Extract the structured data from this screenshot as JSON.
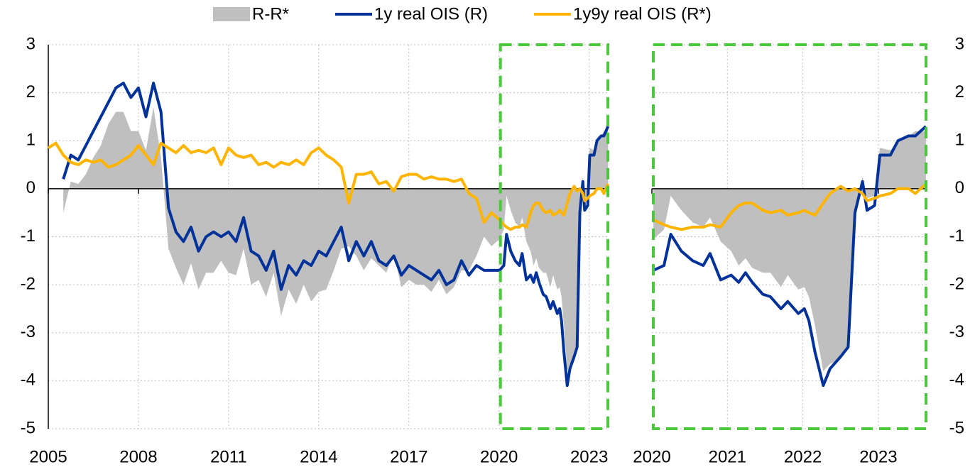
{
  "chart_data": [
    {
      "type": "line",
      "legend": "top",
      "grid": true,
      "yaxis": "left",
      "xlim": [
        2005,
        2023.67
      ],
      "xticks": [
        2005,
        2008,
        2011,
        2014,
        2017,
        2020,
        2023
      ],
      "ylim": [
        -5,
        3
      ],
      "yticks": [
        -5,
        -4,
        -3,
        -2,
        -1,
        0,
        1,
        2,
        3
      ],
      "x": [
        2005.0,
        2005.25,
        2005.5,
        2005.75,
        2006.0,
        2006.25,
        2006.5,
        2006.75,
        2007.0,
        2007.25,
        2007.5,
        2007.75,
        2008.0,
        2008.25,
        2008.5,
        2008.75,
        2009.0,
        2009.25,
        2009.5,
        2009.75,
        2010.0,
        2010.25,
        2010.5,
        2010.75,
        2011.0,
        2011.25,
        2011.5,
        2011.75,
        2012.0,
        2012.25,
        2012.5,
        2012.75,
        2013.0,
        2013.25,
        2013.5,
        2013.75,
        2014.0,
        2014.25,
        2014.5,
        2014.75,
        2015.0,
        2015.25,
        2015.5,
        2015.75,
        2016.0,
        2016.25,
        2016.5,
        2016.75,
        2017.0,
        2017.25,
        2017.5,
        2017.75,
        2018.0,
        2018.25,
        2018.5,
        2018.75,
        2019.0,
        2019.25,
        2019.5,
        2019.75,
        2020.02,
        2020.16,
        2020.25,
        2020.39,
        2020.54,
        2020.68,
        2020.77,
        2020.91,
        2021.05,
        2021.15,
        2021.24,
        2021.33,
        2021.47,
        2021.57,
        2021.71,
        2021.8,
        2021.94,
        2022.02,
        2022.08,
        2022.16,
        2022.27,
        2022.36,
        2022.5,
        2022.6,
        2022.69,
        2022.79,
        2022.85,
        2022.95,
        2023.02,
        2023.16,
        2023.26,
        2023.4,
        2023.49,
        2023.63
      ],
      "series": [
        {
          "name": "R-R*",
          "kind": "area",
          "color": "#bfbfbf",
          "values": [
            null,
            null,
            -0.5,
            0.15,
            0.1,
            0.3,
            0.65,
            0.9,
            1.35,
            1.6,
            1.6,
            1.2,
            1.2,
            0.8,
            1.7,
            0.65,
            -1.25,
            -1.65,
            -2.0,
            -1.55,
            -2.1,
            -1.75,
            -1.75,
            -1.5,
            -1.75,
            -1.8,
            -1.25,
            -2.0,
            -1.9,
            -2.25,
            -1.75,
            -2.65,
            -2.1,
            -2.4,
            -2.0,
            -2.35,
            -2.15,
            -2.1,
            -1.7,
            -1.25,
            -1.2,
            -1.4,
            -1.7,
            -1.45,
            -1.6,
            -1.75,
            -1.35,
            -2.05,
            -1.9,
            -2.0,
            -2.0,
            -2.15,
            -1.9,
            -2.2,
            -2.05,
            -1.7,
            -1.7,
            -1.4,
            -1.0,
            -1.2,
            -1.05,
            -0.85,
            -0.15,
            -0.45,
            -0.7,
            -0.8,
            -0.6,
            -1.1,
            -1.3,
            -1.6,
            -1.45,
            -1.65,
            -1.75,
            -1.75,
            -2.05,
            -1.8,
            -2.1,
            -2.05,
            -2.25,
            -2.85,
            -3.8,
            -3.65,
            -3.55,
            -3.25,
            -0.5,
            0.25,
            -0.2,
            -0.15,
            0.85,
            0.8,
            1.0,
            1.1,
            1.2,
            1.2
          ]
        },
        {
          "name": "1y real OIS (R)",
          "kind": "line",
          "color": "#003299",
          "values": [
            null,
            null,
            0.2,
            0.7,
            0.6,
            0.9,
            1.2,
            1.5,
            1.8,
            2.1,
            2.2,
            1.9,
            2.1,
            1.5,
            2.2,
            1.6,
            -0.4,
            -0.9,
            -1.1,
            -0.8,
            -1.3,
            -1.0,
            -0.9,
            -1.0,
            -0.9,
            -1.1,
            -0.6,
            -1.3,
            -1.4,
            -1.7,
            -1.3,
            -2.1,
            -1.6,
            -1.8,
            -1.5,
            -1.6,
            -1.3,
            -1.4,
            -1.1,
            -0.8,
            -1.5,
            -1.1,
            -1.4,
            -1.1,
            -1.5,
            -1.6,
            -1.4,
            -1.8,
            -1.6,
            -1.7,
            -1.8,
            -1.9,
            -1.7,
            -2.0,
            -1.9,
            -1.5,
            -1.8,
            -1.6,
            -1.7,
            -1.7,
            -1.7,
            -1.6,
            -0.95,
            -1.3,
            -1.5,
            -1.6,
            -1.35,
            -1.9,
            -1.8,
            -1.95,
            -1.75,
            -1.95,
            -2.2,
            -2.25,
            -2.5,
            -2.35,
            -2.6,
            -2.5,
            -2.75,
            -3.4,
            -4.1,
            -3.75,
            -3.5,
            -3.3,
            -0.5,
            0.15,
            -0.45,
            -0.35,
            0.7,
            0.7,
            1.0,
            1.1,
            1.1,
            1.3
          ]
        },
        {
          "name": "1y9y real OIS (R*)",
          "kind": "line",
          "color": "#ffb400",
          "values": [
            0.85,
            0.95,
            0.7,
            0.55,
            0.5,
            0.6,
            0.55,
            0.6,
            0.45,
            0.5,
            0.6,
            0.7,
            0.9,
            0.7,
            0.5,
            0.95,
            0.85,
            0.75,
            0.9,
            0.75,
            0.8,
            0.75,
            0.85,
            0.5,
            0.85,
            0.7,
            0.65,
            0.7,
            0.5,
            0.55,
            0.45,
            0.55,
            0.5,
            0.6,
            0.5,
            0.75,
            0.85,
            0.7,
            0.6,
            0.45,
            -0.3,
            0.3,
            0.3,
            0.35,
            0.1,
            0.15,
            -0.05,
            0.25,
            0.3,
            0.3,
            0.2,
            0.25,
            0.2,
            0.2,
            0.15,
            0.2,
            -0.1,
            -0.2,
            -0.7,
            -0.5,
            -0.65,
            -0.75,
            -0.8,
            -0.85,
            -0.8,
            -0.8,
            -0.75,
            -0.8,
            -0.5,
            -0.35,
            -0.3,
            -0.3,
            -0.45,
            -0.5,
            -0.45,
            -0.55,
            -0.5,
            -0.45,
            -0.5,
            -0.55,
            -0.3,
            -0.1,
            0.05,
            -0.05,
            0.0,
            -0.1,
            -0.25,
            -0.2,
            -0.15,
            -0.1,
            0.0,
            0.0,
            -0.1,
            0.1
          ]
        }
      ]
    },
    {
      "type": "line",
      "grid": true,
      "yaxis": "right",
      "xlim": [
        2020,
        2023.65
      ],
      "xticks": [
        2020,
        2021,
        2022,
        2023
      ],
      "ylim": [
        -5,
        3
      ],
      "yticks": [
        -5,
        -4,
        -3,
        -2,
        -1,
        0,
        1,
        2,
        3
      ],
      "x": [
        2020.02,
        2020.16,
        2020.25,
        2020.39,
        2020.54,
        2020.68,
        2020.77,
        2020.91,
        2021.05,
        2021.15,
        2021.24,
        2021.33,
        2021.47,
        2021.57,
        2021.71,
        2021.8,
        2021.94,
        2022.02,
        2022.08,
        2022.16,
        2022.27,
        2022.36,
        2022.5,
        2022.6,
        2022.69,
        2022.79,
        2022.85,
        2022.95,
        2023.02,
        2023.16,
        2023.26,
        2023.4,
        2023.49,
        2023.63
      ],
      "series": [
        {
          "kind": "area",
          "color": "#bfbfbf",
          "values": [
            -1.05,
            -0.85,
            -0.15,
            -0.45,
            -0.7,
            -0.8,
            -0.6,
            -1.1,
            -1.3,
            -1.6,
            -1.45,
            -1.65,
            -1.75,
            -1.75,
            -2.05,
            -1.8,
            -2.1,
            -2.05,
            -2.25,
            -2.85,
            -3.8,
            -3.65,
            -3.55,
            -3.25,
            -0.5,
            0.25,
            -0.2,
            -0.15,
            0.85,
            0.8,
            1.0,
            1.1,
            1.2,
            1.2
          ]
        },
        {
          "kind": "line",
          "color": "#003299",
          "values": [
            -1.7,
            -1.6,
            -0.95,
            -1.3,
            -1.5,
            -1.6,
            -1.35,
            -1.9,
            -1.8,
            -1.95,
            -1.75,
            -1.95,
            -2.2,
            -2.25,
            -2.5,
            -2.35,
            -2.6,
            -2.5,
            -2.75,
            -3.4,
            -4.1,
            -3.75,
            -3.5,
            -3.3,
            -0.5,
            0.15,
            -0.45,
            -0.35,
            0.7,
            0.7,
            1.0,
            1.1,
            1.1,
            1.3
          ]
        },
        {
          "kind": "line",
          "color": "#ffb400",
          "values": [
            -0.65,
            -0.75,
            -0.8,
            -0.85,
            -0.8,
            -0.8,
            -0.75,
            -0.8,
            -0.5,
            -0.35,
            -0.3,
            -0.3,
            -0.45,
            -0.5,
            -0.45,
            -0.55,
            -0.5,
            -0.45,
            -0.5,
            -0.55,
            -0.3,
            -0.1,
            0.05,
            -0.05,
            0.0,
            -0.1,
            -0.25,
            -0.2,
            -0.15,
            -0.1,
            0.0,
            0.0,
            -0.1,
            0.1
          ]
        }
      ]
    }
  ]
}
